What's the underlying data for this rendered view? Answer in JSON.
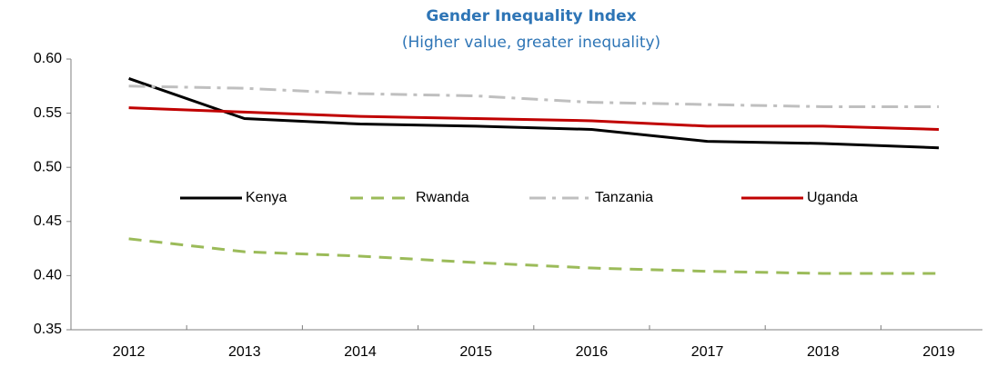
{
  "chart_data": {
    "type": "line",
    "title": "Gender Inequality Index",
    "subtitle": "(Higher value, greater inequality)",
    "categories": [
      "2012",
      "2013",
      "2014",
      "2015",
      "2016",
      "2017",
      "2018",
      "2019"
    ],
    "series": [
      {
        "name": "Kenya",
        "color": "#000000",
        "style": "solid",
        "values": [
          0.582,
          0.545,
          0.54,
          0.538,
          0.535,
          0.524,
          0.522,
          0.518
        ]
      },
      {
        "name": "Rwanda",
        "color": "#9bbb59",
        "style": "dashed",
        "values": [
          0.434,
          0.422,
          0.418,
          0.412,
          0.407,
          0.404,
          0.402,
          0.402
        ]
      },
      {
        "name": "Tanzania",
        "color": "#bfbfbf",
        "style": "dashdot",
        "values": [
          0.575,
          0.573,
          0.568,
          0.566,
          0.56,
          0.558,
          0.556,
          0.556
        ]
      },
      {
        "name": "Uganda",
        "color": "#c00000",
        "style": "solid",
        "values": [
          0.555,
          0.551,
          0.547,
          0.545,
          0.543,
          0.538,
          0.538,
          0.535
        ]
      }
    ],
    "ylim": [
      0.35,
      0.6
    ],
    "yticks": [
      0.35,
      {
        "value": 0.4,
        "label": "0.40"
      },
      0.45,
      {
        "value": 0.5,
        "label": "0.50"
      },
      0.55,
      {
        "value": 0.6,
        "label": "0.60"
      }
    ],
    "grid": false,
    "legend": "center"
  }
}
